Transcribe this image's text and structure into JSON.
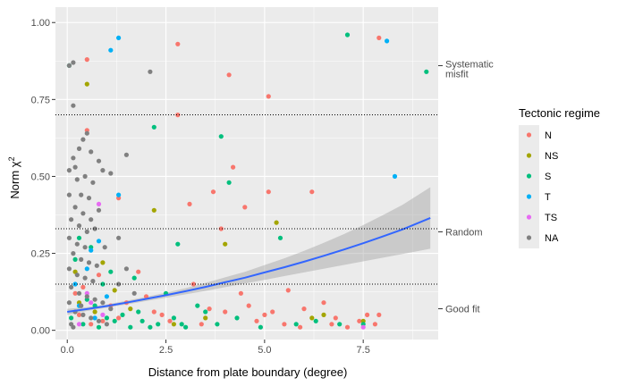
{
  "chart_data": {
    "type": "scatter",
    "title": "",
    "xlabel": "Distance from plate boundary (degree)",
    "ylabel_main": "Norm χ",
    "ylabel_superscript": "2",
    "xlim": [
      -0.3,
      9.4
    ],
    "ylim": [
      -0.03,
      1.05
    ],
    "x_ticks": [
      0.0,
      2.5,
      5.0,
      7.5
    ],
    "x_tick_labels": [
      "0.0",
      "2.5",
      "5.0",
      "7.5"
    ],
    "y_ticks": [
      0.0,
      0.25,
      0.5,
      0.75,
      1.0
    ],
    "y_tick_labels": [
      "0.00",
      "0.25",
      "0.50",
      "0.75",
      "1.00"
    ],
    "grid": true,
    "legend_position": "right",
    "legend_title": "Tectonic regime",
    "colors": {
      "panel_background": "#ebebeb",
      "grid_line": "#ffffff",
      "smooth_line": "#3366ff",
      "confidence_band": "#999999"
    },
    "series": [
      {
        "name": "N",
        "color": "#f8766d",
        "points": [
          [
            0.5,
            0.88
          ],
          [
            0.2,
            0.12
          ],
          [
            0.3,
            0.05
          ],
          [
            0.6,
            0.02
          ],
          [
            0.9,
            0.03
          ],
          [
            1.1,
            0.08
          ],
          [
            1.3,
            0.04
          ],
          [
            0.4,
            0.14
          ],
          [
            0.8,
            0.18
          ],
          [
            2.8,
            0.93
          ],
          [
            4.1,
            0.83
          ],
          [
            5.1,
            0.76
          ],
          [
            2.8,
            0.7
          ],
          [
            0.5,
            0.65
          ],
          [
            4.2,
            0.53
          ],
          [
            3.7,
            0.45
          ],
          [
            5.1,
            0.45
          ],
          [
            6.2,
            0.45
          ],
          [
            3.1,
            0.41
          ],
          [
            1.3,
            0.43
          ],
          [
            4.5,
            0.4
          ],
          [
            3.9,
            0.33
          ],
          [
            1.8,
            0.19
          ],
          [
            3.2,
            0.15
          ],
          [
            4.4,
            0.12
          ],
          [
            5.6,
            0.13
          ],
          [
            6.0,
            0.07
          ],
          [
            6.5,
            0.09
          ],
          [
            6.8,
            0.04
          ],
          [
            7.6,
            0.05
          ],
          [
            7.9,
            0.05
          ],
          [
            7.9,
            0.95
          ],
          [
            2.2,
            0.06
          ],
          [
            2.6,
            0.03
          ],
          [
            3.4,
            0.02
          ],
          [
            4.8,
            0.03
          ],
          [
            5.2,
            0.06
          ],
          [
            5.5,
            0.02
          ],
          [
            5.9,
            0.01
          ],
          [
            6.7,
            0.02
          ],
          [
            7.1,
            0.01
          ],
          [
            7.4,
            0.03
          ],
          [
            7.8,
            0.02
          ],
          [
            1.5,
            0.09
          ],
          [
            2.0,
            0.11
          ],
          [
            2.4,
            0.05
          ],
          [
            3.6,
            0.07
          ],
          [
            4.0,
            0.06
          ],
          [
            4.6,
            0.08
          ],
          [
            5.0,
            0.05
          ]
        ]
      },
      {
        "name": "NS",
        "color": "#a3a500",
        "points": [
          [
            0.5,
            0.8
          ],
          [
            2.2,
            0.39
          ],
          [
            4.0,
            0.28
          ],
          [
            5.3,
            0.35
          ],
          [
            6.2,
            0.04
          ],
          [
            6.5,
            0.05
          ],
          [
            7.5,
            0.03
          ],
          [
            0.3,
            0.09
          ],
          [
            0.7,
            0.06
          ],
          [
            1.2,
            0.13
          ],
          [
            1.6,
            0.07
          ],
          [
            2.7,
            0.02
          ],
          [
            3.5,
            0.04
          ],
          [
            0.9,
            0.22
          ],
          [
            0.2,
            0.19
          ]
        ]
      },
      {
        "name": "S",
        "color": "#00bf7d",
        "points": [
          [
            0.05,
            0.86
          ],
          [
            7.1,
            0.96
          ],
          [
            9.1,
            0.84
          ],
          [
            2.2,
            0.66
          ],
          [
            3.9,
            0.63
          ],
          [
            4.1,
            0.48
          ],
          [
            5.4,
            0.3
          ],
          [
            2.8,
            0.28
          ],
          [
            1.1,
            0.19
          ],
          [
            1.7,
            0.17
          ],
          [
            2.5,
            0.12
          ],
          [
            3.3,
            0.08
          ],
          [
            0.6,
            0.27
          ],
          [
            0.2,
            0.23
          ],
          [
            0.9,
            0.15
          ],
          [
            1.4,
            0.05
          ],
          [
            1.9,
            0.03
          ],
          [
            2.3,
            0.02
          ],
          [
            0.1,
            0.04
          ],
          [
            0.4,
            0.02
          ],
          [
            0.8,
            0.01
          ],
          [
            1.0,
            0.04
          ],
          [
            1.6,
            0.01
          ],
          [
            2.1,
            0.01
          ],
          [
            2.7,
            0.04
          ],
          [
            3.0,
            0.01
          ],
          [
            3.5,
            0.06
          ],
          [
            3.8,
            0.02
          ],
          [
            4.3,
            0.04
          ],
          [
            5.8,
            0.02
          ],
          [
            6.3,
            0.03
          ],
          [
            6.9,
            0.02
          ],
          [
            7.5,
            0.02
          ],
          [
            0.3,
            0.3
          ],
          [
            1.2,
            0.03
          ],
          [
            1.8,
            0.06
          ],
          [
            0.5,
            0.1
          ],
          [
            0.7,
            0.08
          ],
          [
            2.9,
            0.02
          ],
          [
            4.9,
            0.01
          ]
        ]
      },
      {
        "name": "T",
        "color": "#00b0f6",
        "points": [
          [
            1.3,
            0.95
          ],
          [
            1.1,
            0.91
          ],
          [
            8.1,
            0.94
          ],
          [
            8.3,
            0.5
          ],
          [
            1.3,
            0.44
          ],
          [
            0.6,
            0.26
          ],
          [
            0.8,
            0.29
          ],
          [
            0.3,
            0.08
          ],
          [
            0.7,
            0.04
          ],
          [
            1.0,
            0.11
          ],
          [
            0.2,
            0.15
          ],
          [
            0.5,
            0.2
          ]
        ]
      },
      {
        "name": "TS",
        "color": "#e76bf3",
        "points": [
          [
            0.8,
            0.41
          ],
          [
            0.5,
            0.12
          ],
          [
            0.9,
            0.05
          ],
          [
            0.3,
            0.02
          ],
          [
            7.5,
            0.01
          ],
          [
            0.6,
            0.09
          ]
        ]
      },
      {
        "name": "NA",
        "color": "#808080",
        "points": [
          [
            0.15,
            0.87
          ],
          [
            0.05,
            0.86
          ],
          [
            0.15,
            0.73
          ],
          [
            2.1,
            0.84
          ],
          [
            0.5,
            0.64
          ],
          [
            0.4,
            0.62
          ],
          [
            0.3,
            0.59
          ],
          [
            0.6,
            0.58
          ],
          [
            0.8,
            0.55
          ],
          [
            0.15,
            0.56
          ],
          [
            0.2,
            0.53
          ],
          [
            0.05,
            0.52
          ],
          [
            0.25,
            0.49
          ],
          [
            0.45,
            0.5
          ],
          [
            0.65,
            0.48
          ],
          [
            0.9,
            0.52
          ],
          [
            1.1,
            0.51
          ],
          [
            0.05,
            0.44
          ],
          [
            0.35,
            0.44
          ],
          [
            0.55,
            0.43
          ],
          [
            0.2,
            0.4
          ],
          [
            0.4,
            0.38
          ],
          [
            0.6,
            0.36
          ],
          [
            0.8,
            0.39
          ],
          [
            0.1,
            0.36
          ],
          [
            0.3,
            0.34
          ],
          [
            0.5,
            0.32
          ],
          [
            0.7,
            0.33
          ],
          [
            0.05,
            0.3
          ],
          [
            0.25,
            0.28
          ],
          [
            0.45,
            0.27
          ],
          [
            0.15,
            0.25
          ],
          [
            0.35,
            0.23
          ],
          [
            0.55,
            0.22
          ],
          [
            0.05,
            0.2
          ],
          [
            0.25,
            0.18
          ],
          [
            0.45,
            0.17
          ],
          [
            0.65,
            0.16
          ],
          [
            0.1,
            0.14
          ],
          [
            0.3,
            0.12
          ],
          [
            0.5,
            0.11
          ],
          [
            0.7,
            0.1
          ],
          [
            0.9,
            0.09
          ],
          [
            1.1,
            0.07
          ],
          [
            0.2,
            0.06
          ],
          [
            0.4,
            0.05
          ],
          [
            0.6,
            0.04
          ],
          [
            0.8,
            0.03
          ],
          [
            1.0,
            0.02
          ],
          [
            0.1,
            0.02
          ],
          [
            1.5,
            0.57
          ],
          [
            1.3,
            0.3
          ],
          [
            1.5,
            0.2
          ],
          [
            1.7,
            0.12
          ],
          [
            1.3,
            0.15
          ],
          [
            0.05,
            0.09
          ],
          [
            0.15,
            0.01
          ],
          [
            0.35,
            0.08
          ],
          [
            0.75,
            0.21
          ],
          [
            0.95,
            0.27
          ]
        ]
      }
    ],
    "smooth": {
      "x": [
        0.0,
        0.5,
        1.0,
        1.5,
        2.0,
        2.5,
        3.0,
        3.5,
        4.0,
        4.5,
        5.0,
        5.5,
        6.0,
        6.5,
        7.0,
        7.5,
        8.0,
        8.5,
        9.2
      ],
      "y": [
        0.06,
        0.069,
        0.079,
        0.09,
        0.102,
        0.114,
        0.127,
        0.141,
        0.156,
        0.171,
        0.188,
        0.205,
        0.223,
        0.242,
        0.262,
        0.283,
        0.305,
        0.328,
        0.365
      ],
      "lower": [
        0.05,
        0.063,
        0.074,
        0.084,
        0.095,
        0.106,
        0.117,
        0.128,
        0.14,
        0.152,
        0.164,
        0.176,
        0.188,
        0.2,
        0.212,
        0.224,
        0.236,
        0.248,
        0.265
      ],
      "upper": [
        0.07,
        0.075,
        0.084,
        0.096,
        0.109,
        0.122,
        0.137,
        0.154,
        0.172,
        0.19,
        0.212,
        0.234,
        0.258,
        0.284,
        0.312,
        0.342,
        0.374,
        0.408,
        0.465
      ]
    },
    "reference_lines": [
      {
        "y": 0.7,
        "label": [
          "Systematic",
          "misfit"
        ],
        "label_y": 0.86
      },
      {
        "y": 0.33,
        "label": [
          "Random"
        ],
        "label_y": 0.32
      },
      {
        "y": 0.15,
        "label": [
          "Good fit"
        ],
        "label_y": 0.07
      }
    ]
  }
}
